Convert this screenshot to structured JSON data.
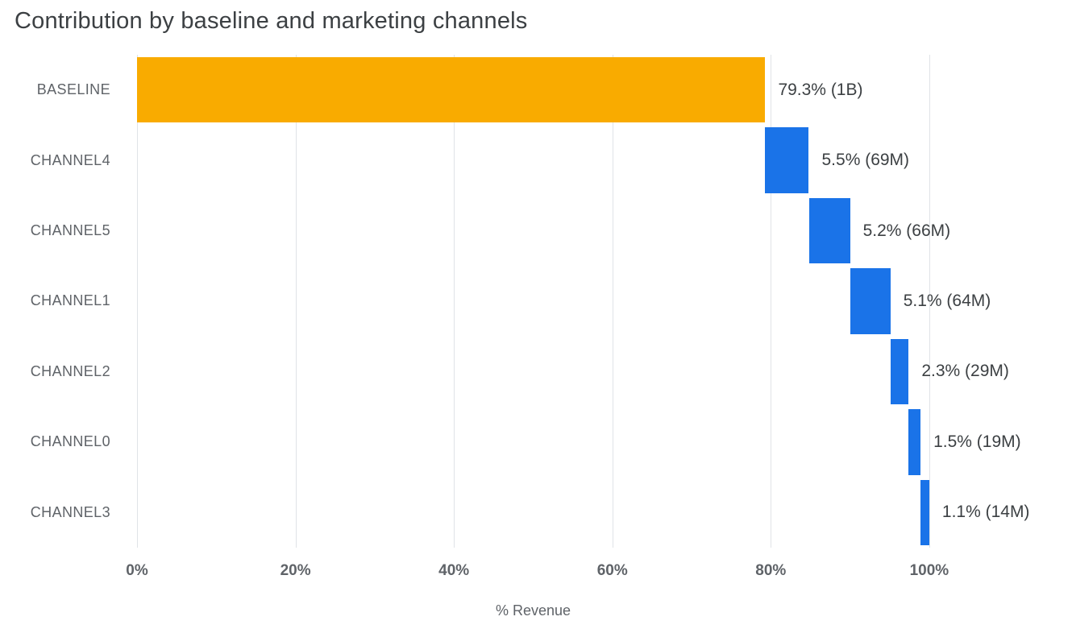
{
  "chart_data": {
    "type": "bar",
    "variant": "horizontal-waterfall",
    "title": "Contribution by baseline and marketing channels",
    "xlabel": "% Revenue",
    "ylabel": "",
    "xlim": [
      0,
      117
    ],
    "grid": true,
    "legend": false,
    "ticks": [
      {
        "value": 0,
        "label": "0%"
      },
      {
        "value": 20,
        "label": "20%"
      },
      {
        "value": 40,
        "label": "40%"
      },
      {
        "value": 60,
        "label": "60%"
      },
      {
        "value": 80,
        "label": "80%"
      },
      {
        "value": 100,
        "label": "100%"
      }
    ],
    "categories": [
      "BASELINE",
      "CHANNEL4",
      "CHANNEL5",
      "CHANNEL1",
      "CHANNEL2",
      "CHANNEL0",
      "CHANNEL3"
    ],
    "series": [
      {
        "name": "% Revenue",
        "starts": [
          0,
          79.3,
          84.8,
          90.0,
          95.1,
          97.4,
          98.9
        ],
        "values": [
          79.3,
          5.5,
          5.2,
          5.1,
          2.3,
          1.5,
          1.1
        ]
      }
    ],
    "rows": [
      {
        "category": "BASELINE",
        "start": 0,
        "value": 79.3,
        "label": "79.3% (1B)",
        "color": "#F9AB00"
      },
      {
        "category": "CHANNEL4",
        "start": 79.3,
        "value": 5.5,
        "label": "5.5% (69M)",
        "color": "#1A73E8"
      },
      {
        "category": "CHANNEL5",
        "start": 84.8,
        "value": 5.2,
        "label": "5.2% (66M)",
        "color": "#1A73E8"
      },
      {
        "category": "CHANNEL1",
        "start": 90.0,
        "value": 5.1,
        "label": "5.1% (64M)",
        "color": "#1A73E8"
      },
      {
        "category": "CHANNEL2",
        "start": 95.1,
        "value": 2.3,
        "label": "2.3% (29M)",
        "color": "#1A73E8"
      },
      {
        "category": "CHANNEL0",
        "start": 97.4,
        "value": 1.5,
        "label": "1.5% (19M)",
        "color": "#1A73E8"
      },
      {
        "category": "CHANNEL3",
        "start": 98.9,
        "value": 1.1,
        "label": "1.1% (14M)",
        "color": "#1A73E8"
      }
    ],
    "colors": {
      "baseline_bar": "#F9AB00",
      "channel_bar": "#1A73E8",
      "gridline": "#E0E3E7",
      "title_text": "#3C4043",
      "axis_text": "#5F6368"
    }
  }
}
